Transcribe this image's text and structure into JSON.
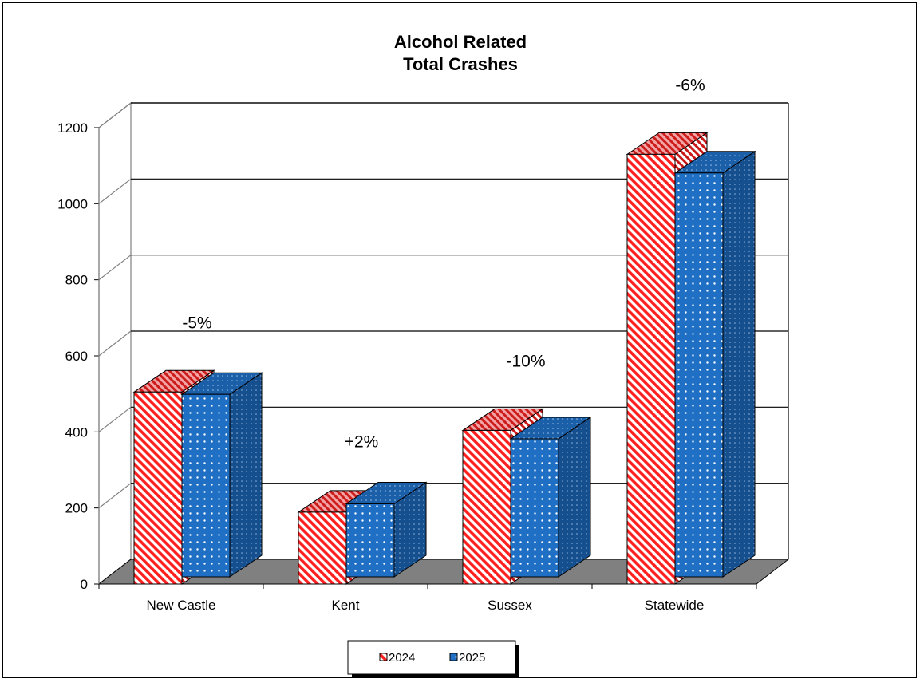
{
  "chart_data": {
    "type": "bar",
    "title": [
      "Alcohol Related",
      "Total Crashes"
    ],
    "categories": [
      "New Castle",
      "Kent",
      "Sussex",
      "Statewide"
    ],
    "series": [
      {
        "name": "2024",
        "values": [
          505,
          189,
          404,
          1130
        ],
        "color": "#ff2020",
        "pattern": "diagonal-stripes"
      },
      {
        "name": "2025",
        "values": [
          480,
          192,
          363,
          1062
        ],
        "color": "#1f6fc4",
        "pattern": "dots"
      }
    ],
    "annotations": [
      "-5%",
      "+2%",
      "-10%",
      "-6%"
    ],
    "yticks": [
      0,
      200,
      400,
      600,
      800,
      1000,
      1200
    ],
    "ylim": [
      0,
      1200
    ],
    "grid": true,
    "legend_position": "bottom-center",
    "xlabel": "",
    "ylabel": "",
    "floor_color": "#808080"
  }
}
